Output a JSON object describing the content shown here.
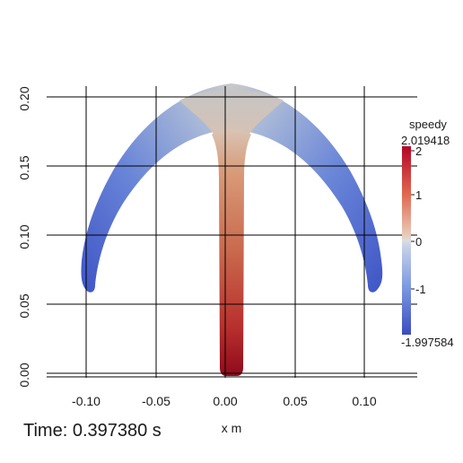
{
  "view": {
    "time_label": "Time: 0.397380 s",
    "x_axis_title": "x m",
    "x_ticks": [
      "-0.10",
      "-0.05",
      "0.00",
      "0.05",
      "0.10"
    ],
    "y_ticks": [
      "0.00",
      "0.05",
      "0.10",
      "0.15",
      "0.20"
    ]
  },
  "colorbar": {
    "title": "speedy",
    "max_label": "2.019418",
    "min_label": "-1.997584",
    "tick_labels": [
      "2",
      "1",
      "0",
      "-1"
    ],
    "colors": {
      "high": "#b40426",
      "mid": "#dddddd",
      "low": "#3b4cc0"
    }
  }
}
